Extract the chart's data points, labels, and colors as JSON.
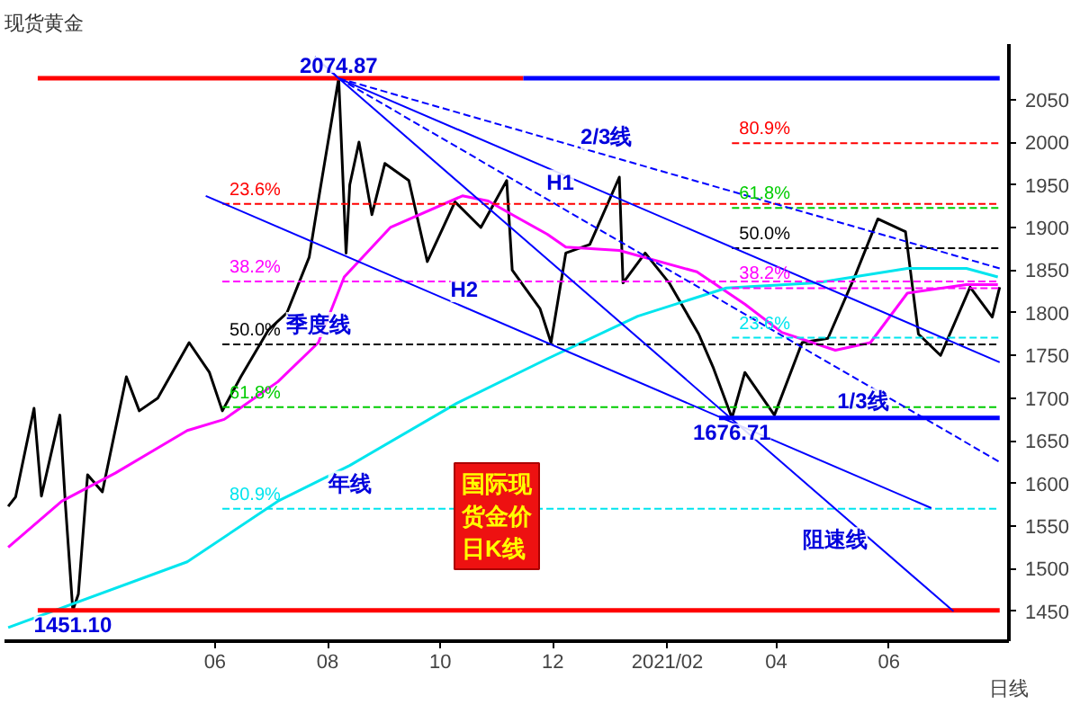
{
  "chart_data": {
    "type": "line",
    "title": "现货黄金",
    "xlabel": "日线",
    "xlim": [
      "2020-02-08",
      "2021-08-05"
    ],
    "ylim": [
      1415,
      2115
    ],
    "xticks": [
      {
        "value": "2020-06-01",
        "label": "06"
      },
      {
        "value": "2020-08-01",
        "label": "08"
      },
      {
        "value": "2020-10-01",
        "label": "10"
      },
      {
        "value": "2020-12-01",
        "label": "12"
      },
      {
        "value": "2021-02-01",
        "label": "2021/02"
      },
      {
        "value": "2021-04-01",
        "label": "04"
      },
      {
        "value": "2021-06-01",
        "label": "06"
      }
    ],
    "yticks": [
      1450,
      1500,
      1550,
      1600,
      1650,
      1700,
      1750,
      1800,
      1850,
      1900,
      1950,
      2000,
      2050
    ],
    "grid": false,
    "series": [
      {
        "color": "#000000",
        "line_style": "solid",
        "x": [
          "2020-02-10",
          "2020-02-14",
          "2020-02-24",
          "2020-02-28",
          "2020-03-09",
          "2020-03-12",
          "2020-03-16",
          "2020-03-19",
          "2020-03-24",
          "2020-04-01",
          "2020-04-14",
          "2020-04-21",
          "2020-05-01",
          "2020-05-18",
          "2020-05-29",
          "2020-06-05",
          "2020-06-15",
          "2020-06-30",
          "2020-07-10",
          "2020-07-22",
          "2020-07-28",
          "2020-08-07",
          "2020-08-11",
          "2020-08-13",
          "2020-08-18",
          "2020-08-25",
          "2020-09-01",
          "2020-09-14",
          "2020-09-24",
          "2020-10-09",
          "2020-10-23",
          "2020-11-06",
          "2020-11-09",
          "2020-11-24",
          "2020-11-30",
          "2020-12-08",
          "2020-12-21",
          "2021-01-06",
          "2021-01-08",
          "2021-01-20",
          "2021-02-02",
          "2021-02-18",
          "2021-02-26",
          "2021-03-08",
          "2021-03-15",
          "2021-03-31",
          "2021-04-15",
          "2021-04-29",
          "2021-05-14",
          "2021-05-26",
          "2021-06-10",
          "2021-06-17",
          "2021-06-29",
          "2021-07-15",
          "2021-07-27",
          "2021-07-31"
        ],
        "values": [
          1573,
          1584,
          1688,
          1585,
          1680,
          1575,
          1451.1,
          1470,
          1610,
          1590,
          1725,
          1685,
          1700,
          1765,
          1730,
          1685,
          1725,
          1780,
          1800,
          1865,
          1945,
          2074.87,
          1870,
          1950,
          2000,
          1915,
          1975,
          1955,
          1860,
          1930,
          1900,
          1955,
          1850,
          1805,
          1765,
          1870,
          1880,
          1959,
          1835,
          1870,
          1835,
          1775,
          1735,
          1676.71,
          1730,
          1680,
          1765,
          1770,
          1845,
          1910,
          1895,
          1775,
          1750,
          1830,
          1795,
          1830
        ]
      },
      {
        "color": "#ff00ff",
        "line_style": "solid",
        "x": [
          "2020-02-10",
          "2020-03-10",
          "2020-04-08",
          "2020-05-17",
          "2020-06-06",
          "2020-07-05",
          "2020-07-27",
          "2020-08-10",
          "2020-09-04",
          "2020-10-13",
          "2020-10-27",
          "2020-11-09",
          "2020-11-28",
          "2020-12-08",
          "2021-01-06",
          "2021-02-17",
          "2021-03-15",
          "2021-04-04",
          "2021-05-03",
          "2021-05-22",
          "2021-06-11",
          "2021-07-13",
          "2021-07-30"
        ],
        "values": [
          1525,
          1579,
          1612,
          1662,
          1675,
          1719,
          1765,
          1842,
          1900,
          1937,
          1931,
          1915,
          1892,
          1877,
          1873,
          1848,
          1810,
          1777,
          1756,
          1765,
          1823,
          1833,
          1833
        ]
      },
      {
        "color": "#00e5ee",
        "line_style": "solid",
        "x": [
          "2020-02-10",
          "2020-05-17",
          "2020-07-05",
          "2020-08-13",
          "2020-10-10",
          "2020-11-28",
          "2021-01-16",
          "2021-03-05",
          "2021-04-23",
          "2021-06-11",
          "2021-07-13",
          "2021-07-30"
        ],
        "values": [
          1431,
          1508,
          1579,
          1621,
          1694,
          1746,
          1796,
          1829,
          1835,
          1852,
          1852,
          1842
        ]
      },
      {
        "color": "#ff0000",
        "line_style": "solid",
        "x": [
          "2020-02-26",
          "2020-11-15"
        ],
        "values": [
          2074.87,
          2074.87
        ]
      },
      {
        "color": "#0000ff",
        "line_style": "solid",
        "x": [
          "2020-11-15",
          "2021-07-31"
        ],
        "values": [
          2074.87,
          2074.87
        ]
      },
      {
        "color": "#ff0000",
        "line_style": "solid",
        "x": [
          "2020-02-26",
          "2021-07-31"
        ],
        "values": [
          1451.1,
          1451.1
        ]
      },
      {
        "color": "#0000ff",
        "line_style": "solid",
        "x": [
          "2021-03-01",
          "2021-07-31"
        ],
        "values": [
          1676.71,
          1676.71
        ]
      },
      {
        "name": "23.6%",
        "color": "#ff0000",
        "line_style": "dashed",
        "x": [
          "2020-06-05",
          "2021-07-31"
        ],
        "values": [
          1927.66,
          1927.66
        ]
      },
      {
        "name": "38.2%",
        "color": "#ff00ff",
        "line_style": "dashed",
        "x": [
          "2020-06-05",
          "2021-07-31"
        ],
        "values": [
          1836.59,
          1836.59
        ]
      },
      {
        "name": "50.0%",
        "color": "#000000",
        "line_style": "dashed",
        "x": [
          "2020-06-05",
          "2021-07-31"
        ],
        "values": [
          1762.99,
          1762.99
        ]
      },
      {
        "name": "61.8%",
        "color": "#00cc00",
        "line_style": "dashed",
        "x": [
          "2020-06-05",
          "2021-07-31"
        ],
        "values": [
          1689.38,
          1689.38
        ]
      },
      {
        "name": "80.9%",
        "color": "#00e5ee",
        "line_style": "dashed",
        "x": [
          "2020-06-05",
          "2021-07-31"
        ],
        "values": [
          1570.23,
          1570.23
        ]
      },
      {
        "name": "23.6%",
        "color": "#00e5ee",
        "line_style": "dashed",
        "x": [
          "2021-03-08",
          "2021-07-31"
        ],
        "values": [
          1770.67,
          1770.67
        ]
      },
      {
        "name": "38.2%",
        "color": "#ff00ff",
        "line_style": "dashed",
        "x": [
          "2021-03-08",
          "2021-07-31"
        ],
        "values": [
          1828.81,
          1828.81
        ]
      },
      {
        "name": "50.0%",
        "color": "#000000",
        "line_style": "dashed",
        "x": [
          "2021-03-08",
          "2021-07-31"
        ],
        "values": [
          1875.79,
          1875.79
        ]
      },
      {
        "name": "61.8%",
        "color": "#00cc00",
        "line_style": "dashed",
        "x": [
          "2021-03-08",
          "2021-07-31"
        ],
        "values": [
          1922.77,
          1922.77
        ]
      },
      {
        "name": "80.9%",
        "color": "#ff0000",
        "line_style": "dashed",
        "x": [
          "2021-03-08",
          "2021-07-31"
        ],
        "values": [
          1998.82,
          1998.82
        ]
      },
      {
        "color": "#0000ff",
        "line_style": "dashed",
        "x": [
          "2020-07-25",
          "2020-08-07",
          "2021-07-31"
        ],
        "values": [
          2100,
          2074.87,
          1852
        ]
      },
      {
        "color": "#0000ff",
        "line_style": "solid",
        "x": [
          "2020-07-25",
          "2020-08-07",
          "2021-07-31"
        ],
        "values": [
          2100,
          2074.87,
          1742
        ]
      },
      {
        "color": "#0000ff",
        "line_style": "dashed",
        "x": [
          "2020-08-07",
          "2021-07-31"
        ],
        "values": [
          2074.87,
          1625
        ]
      },
      {
        "color": "#0000ff",
        "line_style": "solid",
        "x": [
          "2020-08-07",
          "2021-07-06"
        ],
        "values": [
          2074.87,
          1450
        ]
      },
      {
        "color": "#0000ff",
        "line_style": "solid",
        "x": [
          "2020-05-27",
          "2021-06-24"
        ],
        "values": [
          1937,
          1571
        ]
      }
    ],
    "annotations": [
      {
        "text": "2074.87",
        "x": "2020-08-07",
        "y": 2074.87
      },
      {
        "text": "1451.10",
        "x": "2020-03-16",
        "y": 1451.1
      },
      {
        "text": "1676.71",
        "x": "2021-03-08",
        "y": 1676.71
      },
      {
        "text": "H1",
        "x": "2020-12-05",
        "y": 1932
      },
      {
        "text": "H2",
        "x": "2020-10-14",
        "y": 1806
      },
      {
        "text": "2/3线",
        "x": "2020-12-30",
        "y": 1985
      },
      {
        "text": "1/3线",
        "x": "2021-05-18",
        "y": 1718
      },
      {
        "text": "阻速线",
        "x": "2021-05-03",
        "y": 1555
      },
      {
        "text": "季度线",
        "x": "2020-07-27",
        "y": 1765
      },
      {
        "text": "年线",
        "x": "2020-08-13",
        "y": 1621
      },
      "国际现货金价日K线"
    ]
  }
}
